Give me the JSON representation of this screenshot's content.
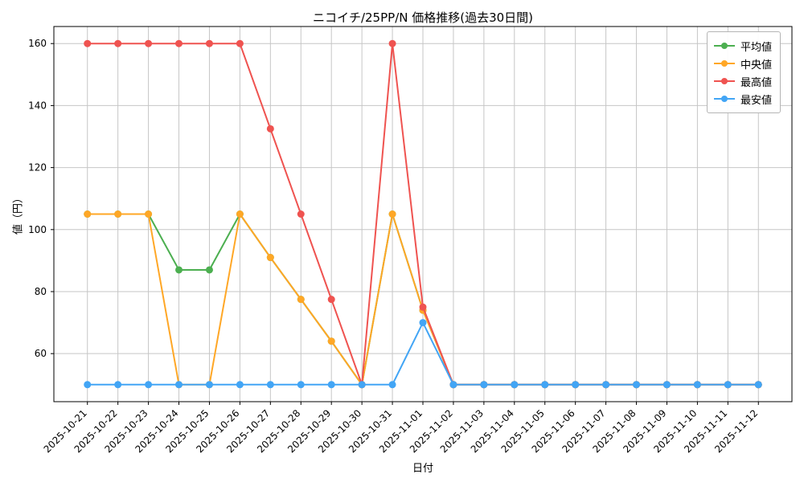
{
  "chart_data": {
    "type": "line",
    "title": "ニコイチ/25PP/N 価格推移(過去30日間)",
    "xlabel": "日付",
    "ylabel": "値（円）",
    "x": [
      "2025-10-21",
      "2025-10-22",
      "2025-10-23",
      "2025-10-24",
      "2025-10-25",
      "2025-10-26",
      "2025-10-27",
      "2025-10-28",
      "2025-10-29",
      "2025-10-30",
      "2025-10-31",
      "2025-11-01",
      "2025-11-02",
      "2025-11-03",
      "2025-11-04",
      "2025-11-05",
      "2025-11-06",
      "2025-11-07",
      "2025-11-08",
      "2025-11-09",
      "2025-11-10",
      "2025-11-11",
      "2025-11-12"
    ],
    "series": [
      {
        "name": "平均値",
        "color": "#4caf50",
        "values": [
          105,
          105,
          105,
          87,
          87,
          105,
          91,
          77.5,
          64,
          50,
          105,
          74,
          50,
          50,
          50,
          50,
          50,
          50,
          50,
          50,
          50,
          50,
          50
        ]
      },
      {
        "name": "中央値",
        "color": "#ffa726",
        "values": [
          105,
          105,
          105,
          50,
          50,
          105,
          91,
          77.5,
          64,
          50,
          105,
          74,
          50,
          50,
          50,
          50,
          50,
          50,
          50,
          50,
          50,
          50,
          50
        ]
      },
      {
        "name": "最高値",
        "color": "#ef5350",
        "values": [
          160,
          160,
          160,
          160,
          160,
          160,
          132.5,
          105,
          77.5,
          50,
          160,
          75,
          50,
          50,
          50,
          50,
          50,
          50,
          50,
          50,
          50,
          50,
          50
        ]
      },
      {
        "name": "最安値",
        "color": "#42a5f5",
        "values": [
          50,
          50,
          50,
          50,
          50,
          50,
          50,
          50,
          50,
          50,
          50,
          70,
          50,
          50,
          50,
          50,
          50,
          50,
          50,
          50,
          50,
          50,
          50
        ]
      }
    ],
    "y_ticks": [
      60,
      80,
      100,
      120,
      140,
      160
    ],
    "ylim": [
      44.5,
      165.5
    ],
    "grid": true,
    "legend_position": "upper right",
    "colors": {
      "grid": "#c6c6c6",
      "axis": "#000000",
      "background": "#ffffff"
    }
  }
}
